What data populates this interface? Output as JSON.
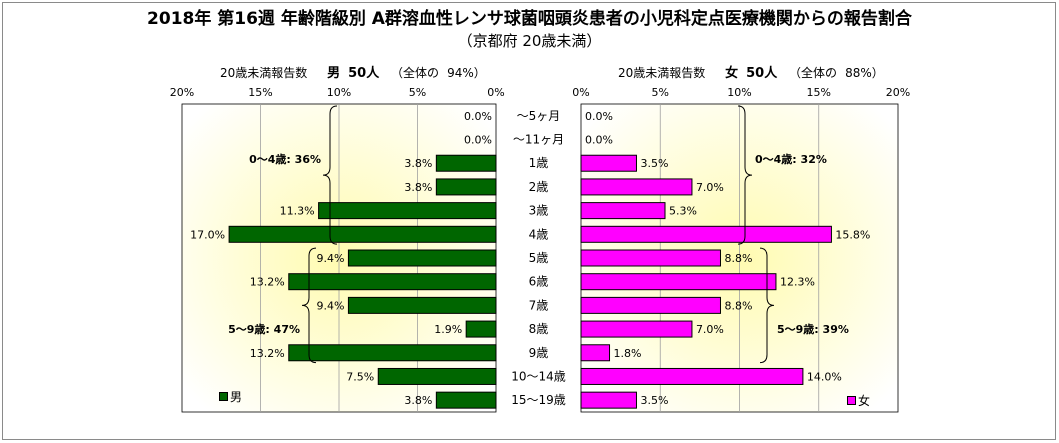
{
  "title": "2018年 第16週 年齢階級別 A群溶血性レンサ球菌咽頭炎患者の小児科定点医療機関からの報告割合",
  "subtitle": "（京都府 20歳未満）",
  "colors": {
    "male": "#006600",
    "female": "#ff00ff",
    "plot_bg_center": "#fffbb0"
  },
  "male_header": {
    "label": "20歳未満報告数",
    "sex": "男",
    "count": "50人",
    "share_prefix": "（全体の",
    "share_value": "94%）"
  },
  "female_header": {
    "label": "20歳未満報告数",
    "sex": "女",
    "count": "50人",
    "share_prefix": "（全体の",
    "share_value": "88%）"
  },
  "legend": {
    "male": "男",
    "female": "女"
  },
  "chart_data": {
    "type": "bar",
    "orientation": "horizontal-population-pyramid",
    "categories": [
      "～5ヶ月",
      "～11ヶ月",
      "1歳",
      "2歳",
      "3歳",
      "4歳",
      "5歳",
      "6歳",
      "7歳",
      "8歳",
      "9歳",
      "10～14歳",
      "15～19歳"
    ],
    "series": [
      {
        "name": "男",
        "values": [
          0.0,
          0.0,
          3.8,
          3.8,
          11.3,
          17.0,
          9.4,
          13.2,
          9.4,
          1.9,
          13.2,
          7.5,
          3.8
        ]
      },
      {
        "name": "女",
        "values": [
          0.0,
          0.0,
          3.5,
          7.0,
          5.3,
          15.8,
          8.8,
          12.3,
          8.8,
          7.0,
          1.8,
          14.0,
          3.5
        ]
      }
    ],
    "data_label_format": "0.0%",
    "xlim": [
      0,
      20
    ],
    "ticks": [
      0,
      5,
      10,
      15,
      20
    ],
    "tick_suffix": "%",
    "brackets": [
      {
        "series": "男",
        "from": "～5ヶ月",
        "to": "4歳",
        "label": "0～4歳: 36%"
      },
      {
        "series": "男",
        "from": "5歳",
        "to": "9歳",
        "label": "5～9歳: 47%"
      },
      {
        "series": "女",
        "from": "～5ヶ月",
        "to": "4歳",
        "label": "0～4歳: 32%"
      },
      {
        "series": "女",
        "from": "5歳",
        "to": "9歳",
        "label": "5～9歳: 39%"
      }
    ]
  }
}
